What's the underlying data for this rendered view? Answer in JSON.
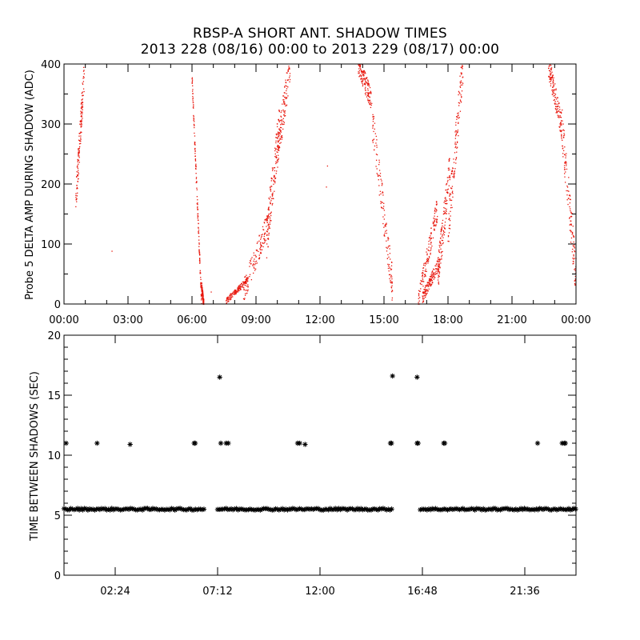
{
  "title": {
    "line1": "RBSP-A SHORT ANT. SHADOW TIMES",
    "line2": "2013 228 (08/16) 00:00 to 2013 229 (08/17) 00:00"
  },
  "colors": {
    "amp_points": "#e8160c",
    "gap_points": "#000000",
    "axes": "#000000"
  },
  "chart_data": [
    {
      "type": "scatter",
      "ylabel": "Probe 5 DELTA AMP DURING SHADOW (ADC)",
      "xlim": [
        0,
        24
      ],
      "ylim": [
        0,
        400
      ],
      "x_unit": "hours",
      "xticks": [
        0,
        3,
        6,
        9,
        12,
        15,
        18,
        21,
        24
      ],
      "xtick_labels": [
        "00:00",
        "03:00",
        "06:00",
        "09:00",
        "12:00",
        "15:00",
        "18:00",
        "21:00",
        "00:00"
      ],
      "yticks": [
        0,
        100,
        200,
        300,
        400
      ],
      "ytick_labels": [
        "0",
        "100",
        "200",
        "300",
        "400"
      ],
      "point_marker": "dot",
      "segments": [
        {
          "x": [
            0.55,
            0.95
          ],
          "y": [
            170,
            385
          ],
          "spread": 55
        },
        {
          "x": [
            6.0,
            6.45
          ],
          "y": [
            380,
            0
          ],
          "spread": 20
        },
        {
          "x": [
            6.45,
            6.55
          ],
          "y": [
            30,
            0
          ],
          "spread": 15
        },
        {
          "x": [
            7.6,
            8.6
          ],
          "y": [
            5,
            40
          ],
          "spread": 10
        },
        {
          "x": [
            8.4,
            9.6
          ],
          "y": [
            20,
            140
          ],
          "spread": 40
        },
        {
          "x": [
            9.5,
            10.1
          ],
          "y": [
            110,
            300
          ],
          "spread": 70
        },
        {
          "x": [
            10.0,
            10.6
          ],
          "y": [
            250,
            400
          ],
          "spread": 60
        },
        {
          "x": [
            13.8,
            14.4
          ],
          "y": [
            400,
            340
          ],
          "spread": 35
        },
        {
          "x": [
            14.4,
            15.4
          ],
          "y": [
            320,
            30
          ],
          "spread": 60
        },
        {
          "x": [
            16.6,
            17.5
          ],
          "y": [
            0,
            160
          ],
          "spread": 40
        },
        {
          "x": [
            16.8,
            17.6
          ],
          "y": [
            10,
            70
          ],
          "spread": 20
        },
        {
          "x": [
            17.5,
            18.1
          ],
          "y": [
            40,
            230
          ],
          "spread": 60
        },
        {
          "x": [
            18.0,
            18.7
          ],
          "y": [
            120,
            400
          ],
          "spread": 70
        },
        {
          "x": [
            22.7,
            23.3
          ],
          "y": [
            400,
            300
          ],
          "spread": 40
        },
        {
          "x": [
            23.3,
            24.0
          ],
          "y": [
            310,
            45
          ],
          "spread": 70
        }
      ],
      "isolated_points": [
        {
          "x": 2.25,
          "y": 88
        },
        {
          "x": 12.3,
          "y": 195
        },
        {
          "x": 6.9,
          "y": 20
        },
        {
          "x": 12.35,
          "y": 230
        }
      ]
    },
    {
      "type": "scatter",
      "ylabel": "TIME BETWEEN SHADOWS (SEC)",
      "xlim": [
        0,
        24
      ],
      "ylim": [
        0,
        20
      ],
      "x_unit": "hours",
      "xticks": [
        2.4,
        7.2,
        12.0,
        16.8,
        21.6
      ],
      "xtick_labels": [
        "02:24",
        "07:12",
        "12:00",
        "16:48",
        "21:36"
      ],
      "yticks": [
        0,
        5,
        10,
        15,
        20
      ],
      "ytick_labels": [
        "0",
        "5",
        "10",
        "15",
        "20"
      ],
      "point_marker": "asterisk",
      "baseline_y": 5.5,
      "baseline_ranges": [
        [
          0.0,
          6.6
        ],
        [
          7.2,
          15.4
        ],
        [
          16.7,
          24.0
        ]
      ],
      "points": [
        {
          "x": 0.1,
          "y": 11.0
        },
        {
          "x": 1.55,
          "y": 11.0
        },
        {
          "x": 3.1,
          "y": 10.9
        },
        {
          "x": 6.1,
          "y": 11.0
        },
        {
          "x": 6.15,
          "y": 11.0
        },
        {
          "x": 7.3,
          "y": 16.5
        },
        {
          "x": 7.35,
          "y": 11.0
        },
        {
          "x": 7.6,
          "y": 11.0
        },
        {
          "x": 7.7,
          "y": 11.0
        },
        {
          "x": 10.95,
          "y": 11.0
        },
        {
          "x": 11.05,
          "y": 11.0
        },
        {
          "x": 11.3,
          "y": 10.9
        },
        {
          "x": 15.3,
          "y": 11.0
        },
        {
          "x": 15.35,
          "y": 11.0
        },
        {
          "x": 15.4,
          "y": 16.6
        },
        {
          "x": 16.55,
          "y": 16.5
        },
        {
          "x": 16.55,
          "y": 11.0
        },
        {
          "x": 16.6,
          "y": 11.0
        },
        {
          "x": 17.8,
          "y": 11.0
        },
        {
          "x": 17.85,
          "y": 11.0
        },
        {
          "x": 22.2,
          "y": 11.0
        },
        {
          "x": 23.35,
          "y": 11.0
        },
        {
          "x": 23.45,
          "y": 11.0
        },
        {
          "x": 23.5,
          "y": 11.0
        }
      ]
    }
  ]
}
